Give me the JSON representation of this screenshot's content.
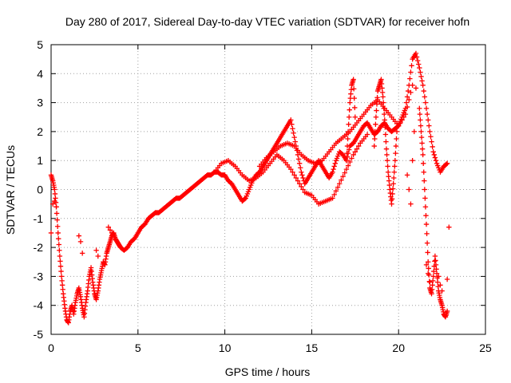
{
  "chart_data": {
    "type": "scatter",
    "title": "Day 280 of 2017, Sidereal Day-to-day VTEC variation (SDTVAR) for receiver hofn",
    "xlabel": "GPS time / hours",
    "ylabel": "SDTVAR / TECUs",
    "xlim": [
      0,
      25
    ],
    "ylim": [
      -5,
      5
    ],
    "xticks": [
      "0",
      "5",
      "10",
      "15",
      "20",
      "25"
    ],
    "yticks": [
      "-5",
      "-4",
      "-3",
      "-2",
      "-1",
      "0",
      "1",
      "2",
      "3",
      "4",
      "5"
    ],
    "grid": true,
    "marker": "+",
    "color": "#ff0000",
    "series": [
      {
        "name": "main",
        "x": [
          0.0,
          0.1,
          0.2,
          0.3,
          0.4,
          0.5,
          0.6,
          0.7,
          0.8,
          0.9,
          1.0,
          1.1,
          1.2,
          1.3,
          1.4,
          1.5,
          1.6,
          1.7,
          1.8,
          1.9,
          2.0,
          2.1,
          2.2,
          2.3,
          2.4,
          2.5,
          2.6,
          2.7,
          2.8,
          2.9,
          3.0,
          3.1,
          3.2,
          3.3,
          3.4,
          3.5,
          3.6,
          3.7,
          3.8,
          3.9,
          4.0,
          4.2,
          4.4,
          4.6,
          4.8,
          5.0,
          5.2,
          5.4,
          5.6,
          5.8,
          6.0,
          6.2,
          6.4,
          6.6,
          6.8,
          7.0,
          7.2,
          7.4,
          7.6,
          7.8,
          8.0,
          8.2,
          8.4,
          8.6,
          8.8,
          9.0,
          9.2,
          9.4,
          9.6,
          9.8,
          10.0,
          10.2,
          10.4,
          10.6,
          10.8,
          11.0,
          11.2,
          11.4,
          11.6,
          11.8,
          12.0,
          12.2,
          12.4,
          12.6,
          12.8,
          13.0,
          13.2,
          13.4,
          13.6,
          13.8,
          14.0,
          14.2,
          14.4,
          14.6,
          14.8,
          15.0,
          15.2,
          15.4,
          15.6,
          15.8,
          16.0,
          16.2,
          16.4,
          16.6,
          16.8,
          17.0,
          17.2,
          17.4,
          17.6,
          17.8,
          18.0,
          18.2,
          18.4,
          18.6,
          18.8,
          19.0,
          19.2,
          19.4,
          19.6,
          19.8,
          20.0,
          20.2,
          20.4,
          20.6,
          20.8,
          21.0,
          21.2,
          21.4,
          21.6,
          21.8,
          22.0,
          22.2,
          22.4,
          22.6,
          22.8
        ],
        "y": [
          0.5,
          0.3,
          0.0,
          -0.6,
          -1.5,
          -2.3,
          -3.0,
          -3.6,
          -4.1,
          -4.5,
          -4.6,
          -4.2,
          -4.0,
          -4.3,
          -3.9,
          -3.6,
          -3.4,
          -3.7,
          -4.1,
          -4.4,
          -3.9,
          -3.5,
          -3.0,
          -2.7,
          -3.2,
          -3.6,
          -3.8,
          -3.5,
          -3.1,
          -2.8,
          -2.5,
          -2.6,
          -2.2,
          -2.0,
          -1.8,
          -1.6,
          -1.5,
          -1.7,
          -1.8,
          -1.9,
          -2.0,
          -2.1,
          -2.0,
          -1.8,
          -1.7,
          -1.5,
          -1.3,
          -1.2,
          -1.0,
          -0.9,
          -0.8,
          -0.8,
          -0.7,
          -0.6,
          -0.5,
          -0.4,
          -0.3,
          -0.3,
          -0.2,
          -0.1,
          0.0,
          0.1,
          0.2,
          0.3,
          0.4,
          0.5,
          0.5,
          0.6,
          0.6,
          0.5,
          0.5,
          0.3,
          0.2,
          0.0,
          -0.2,
          -0.4,
          -0.3,
          0.0,
          0.3,
          0.5,
          0.6,
          0.8,
          1.0,
          1.2,
          1.4,
          1.6,
          1.8,
          2.0,
          2.2,
          2.4,
          1.8,
          1.2,
          0.6,
          0.2,
          0.4,
          0.6,
          0.8,
          1.0,
          0.8,
          0.6,
          0.4,
          0.6,
          1.0,
          1.3,
          1.2,
          1.0,
          1.5,
          1.6,
          1.8,
          2.0,
          2.2,
          2.3,
          2.1,
          1.9,
          2.0,
          2.2,
          2.3,
          2.1,
          2.0,
          2.1,
          2.2,
          2.5,
          2.8,
          3.6,
          4.5,
          4.7,
          4.2,
          3.6,
          2.8,
          2.0,
          1.3,
          0.9,
          0.6,
          0.8,
          0.9
        ]
      },
      {
        "name": "upper-band",
        "x": [
          12.0,
          12.4,
          12.8,
          13.2,
          13.6,
          14.0,
          14.4,
          14.8,
          15.2,
          15.6,
          16.0,
          16.4,
          16.8,
          17.2,
          17.6,
          18.0,
          18.4,
          18.8,
          19.2,
          19.6,
          20.0,
          20.4,
          20.8
        ],
        "y": [
          0.8,
          1.1,
          1.3,
          1.5,
          1.6,
          1.5,
          1.2,
          1.0,
          0.9,
          1.0,
          1.3,
          1.6,
          1.8,
          2.0,
          2.3,
          2.6,
          2.9,
          3.1,
          2.8,
          2.5,
          2.2,
          2.6,
          3.6
        ]
      },
      {
        "name": "lower-band",
        "x": [
          9.4,
          9.8,
          10.2,
          10.6,
          11.0,
          11.4,
          11.8,
          12.2,
          12.6,
          13.0,
          13.4,
          13.8,
          14.2,
          14.6,
          15.0,
          15.4,
          15.8,
          16.2,
          16.6,
          17.0,
          17.4,
          17.8,
          18.2
        ],
        "y": [
          0.6,
          0.9,
          1.0,
          0.8,
          0.5,
          0.3,
          0.4,
          0.6,
          0.9,
          1.2,
          1.0,
          0.7,
          0.3,
          -0.1,
          -0.2,
          -0.5,
          -0.4,
          -0.3,
          0.2,
          0.7,
          1.2,
          1.6,
          1.9
        ]
      },
      {
        "name": "spikes",
        "x": [
          17.0,
          17.1,
          17.2,
          17.3,
          17.4,
          17.5,
          18.6,
          18.7,
          18.8,
          18.9,
          19.0,
          19.1,
          19.2,
          19.3,
          19.4,
          19.5,
          19.6,
          19.7,
          19.8,
          19.9,
          21.2,
          21.3,
          21.4,
          21.5,
          21.6,
          21.7,
          21.8,
          21.9,
          22.0,
          22.1,
          22.2,
          22.3,
          22.4,
          22.5,
          22.6,
          22.7,
          22.8
        ],
        "y": [
          1.0,
          2.0,
          3.0,
          3.6,
          3.8,
          2.5,
          1.5,
          2.5,
          3.4,
          3.6,
          3.8,
          3.2,
          2.4,
          1.4,
          0.6,
          0.0,
          -0.5,
          0.2,
          1.0,
          2.0,
          2.8,
          2.0,
          1.2,
          0.0,
          -1.2,
          -2.5,
          -3.4,
          -3.6,
          -3.0,
          -2.3,
          -2.9,
          -3.5,
          -3.8,
          -4.0,
          -4.3,
          -4.4,
          -4.2
        ]
      },
      {
        "name": "offset-points",
        "x": [
          0.0,
          0.1,
          0.2,
          0.3,
          1.6,
          1.7,
          1.8,
          2.6,
          2.7,
          3.3,
          3.4,
          3.5,
          21.6,
          21.7,
          21.8,
          22.3,
          22.4,
          22.5,
          22.8,
          22.9,
          20.5,
          20.6,
          20.7,
          20.8,
          20.9,
          21.0
        ],
        "y": [
          -1.5,
          -0.5,
          -0.4,
          -0.6,
          -1.6,
          -1.8,
          -2.2,
          -2.1,
          -2.3,
          -1.3,
          -1.4,
          -1.5,
          -2.6,
          -2.9,
          -3.2,
          -3.0,
          -3.3,
          -3.5,
          -3.1,
          -1.3,
          0.5,
          0.0,
          -0.5,
          1.0,
          2.0,
          3.5
        ]
      }
    ]
  }
}
